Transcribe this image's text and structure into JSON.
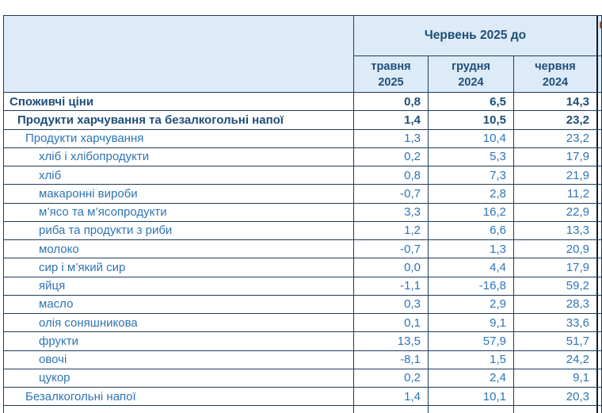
{
  "table": {
    "header_group": "Червень 2025 до",
    "columns": [
      {
        "line1": "травня",
        "line2": "2025"
      },
      {
        "line1": "грудня",
        "line2": "2024"
      },
      {
        "line1": "червня",
        "line2": "2024"
      }
    ],
    "rows": [
      {
        "label": "Споживчі ціни",
        "indent": 0,
        "bold": true,
        "values": [
          "0,8",
          "6,5",
          "14,3"
        ]
      },
      {
        "label": "Продукти харчування та безалкогольні напої",
        "indent": 1,
        "bold": true,
        "values": [
          "1,4",
          "10,5",
          "23,2"
        ]
      },
      {
        "label": "Продукти харчування",
        "indent": 2,
        "bold": false,
        "values": [
          "1,3",
          "10,4",
          "23,2"
        ]
      },
      {
        "label": "хліб і хлібопродукти",
        "indent": 3,
        "bold": false,
        "values": [
          "0,2",
          "5,3",
          "17,9"
        ]
      },
      {
        "label": "хліб",
        "indent": 3,
        "bold": false,
        "values": [
          "0,8",
          "7,3",
          "21,9"
        ]
      },
      {
        "label": "макаронні вироби",
        "indent": 3,
        "bold": false,
        "values": [
          "-0,7",
          "2,8",
          "11,2"
        ]
      },
      {
        "label": "м’ясо та м’ясопродукти",
        "indent": 3,
        "bold": false,
        "values": [
          "3,3",
          "16,2",
          "22,9"
        ]
      },
      {
        "label": "риба та продукти з риби",
        "indent": 3,
        "bold": false,
        "values": [
          "1,2",
          "6,6",
          "13,3"
        ]
      },
      {
        "label": "молоко",
        "indent": 3,
        "bold": false,
        "values": [
          "-0,7",
          "1,3",
          "20,9"
        ]
      },
      {
        "label": "сир і м’який сир",
        "indent": 3,
        "bold": false,
        "values": [
          "0,0",
          "4,4",
          "17,9"
        ]
      },
      {
        "label": "яйця",
        "indent": 3,
        "bold": false,
        "values": [
          "-1,1",
          "-16,8",
          "59,2"
        ]
      },
      {
        "label": "масло",
        "indent": 3,
        "bold": false,
        "values": [
          "0,3",
          "2,9",
          "28,3"
        ]
      },
      {
        "label": "олія соняшникова",
        "indent": 3,
        "bold": false,
        "values": [
          "0,1",
          "9,1",
          "33,6"
        ]
      },
      {
        "label": "фрукти",
        "indent": 3,
        "bold": false,
        "values": [
          "13,5",
          "57,9",
          "51,7"
        ]
      },
      {
        "label": "овочі",
        "indent": 3,
        "bold": false,
        "values": [
          "-8,1",
          "1,5",
          "24,2"
        ]
      },
      {
        "label": "цукор",
        "indent": 3,
        "bold": false,
        "values": [
          "0,2",
          "2,4",
          "9,1"
        ]
      },
      {
        "label": "Безалкогольні напої",
        "indent": 2,
        "bold": false,
        "values": [
          "1,4",
          "10,1",
          "20,3"
        ]
      }
    ]
  },
  "colors": {
    "header_bg": "#dcebf7",
    "border": "#1f3c5e",
    "dark_border": "#0e1c2b",
    "bold_text": "#1f4e79",
    "regular_text": "#2e74b5",
    "fragment_accent": "#9c5a38"
  }
}
